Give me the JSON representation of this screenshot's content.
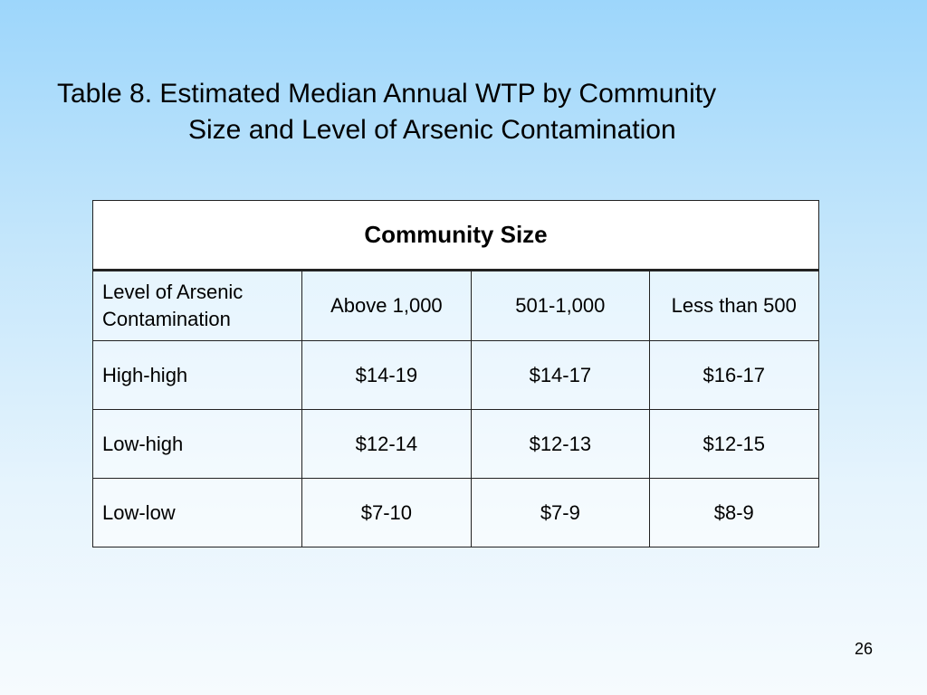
{
  "title": {
    "line1": "Table 8.  Estimated Median Annual WTP by Community",
    "line2": "Size and Level of Arsenic Contamination"
  },
  "table": {
    "header": "Community Size",
    "columns": [
      "Level of Arsenic Contamination",
      "Above 1,000",
      "501-1,000",
      "Less than 500"
    ],
    "rows": [
      [
        "High-high",
        "$14-19",
        "$14-17",
        "$16-17"
      ],
      [
        "Low-high",
        "$12-14",
        "$12-13",
        "$12-15"
      ],
      [
        "Low-low",
        "$7-10",
        "$7-9",
        "$8-9"
      ]
    ]
  },
  "page_number": "26"
}
